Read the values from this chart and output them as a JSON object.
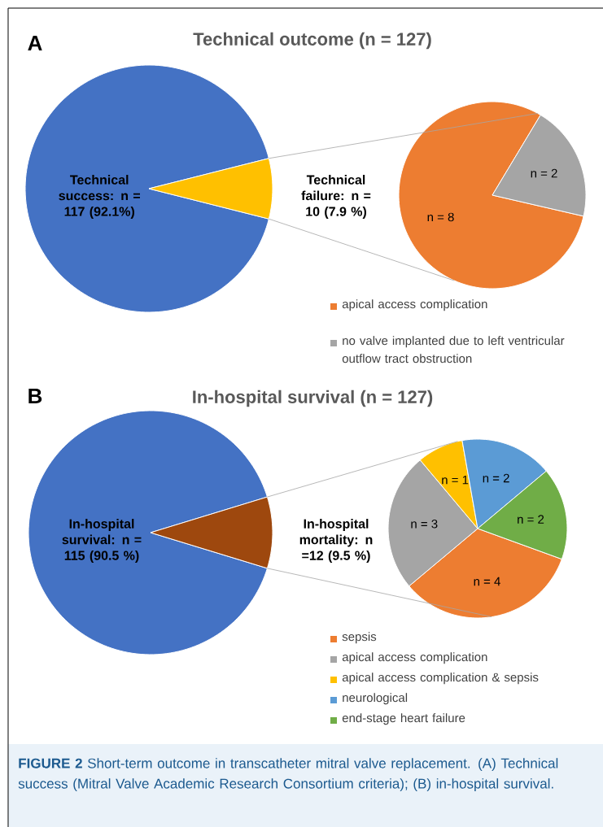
{
  "chart_data": [
    {
      "type": "pie",
      "title": "Technical outcome (n = 127)",
      "categories": [
        "Technical success: n = 117 (92.1%)",
        "Technical failure: n = 10 (7.9 %)"
      ],
      "values": [
        117,
        10
      ],
      "colors": [
        "#4472c4",
        "#ffc000"
      ],
      "annotations": [
        "A"
      ]
    },
    {
      "type": "pie",
      "categories": [
        "apical access complication",
        "no valve implanted due to left ventricular outflow tract obstruction"
      ],
      "values": [
        8,
        2
      ],
      "colors": [
        "#ed7d31",
        "#a5a5a5"
      ],
      "value_labels": [
        "n = 8",
        "n = 2"
      ],
      "legend": "bottom"
    },
    {
      "type": "pie",
      "title": "In-hospital survival (n = 127)",
      "categories": [
        "In-hospital survival: n = 115 (90.5 %)",
        "In-hospital mortality: n =12 (9.5 %)"
      ],
      "values": [
        115,
        12
      ],
      "colors": [
        "#4472c4",
        "#9e480e"
      ],
      "annotations": [
        "B"
      ]
    },
    {
      "type": "pie",
      "categories": [
        "sepsis",
        "apical access complication",
        "apical access complication & sepsis",
        "neurological",
        "end-stage heart failure"
      ],
      "values": [
        4,
        3,
        1,
        2,
        2
      ],
      "colors": [
        "#ed7d31",
        "#a5a5a5",
        "#ffc000",
        "#5b9bd5",
        "#70ad47"
      ],
      "value_labels": [
        "n = 4",
        "n = 3",
        "n = 1",
        "n = 2",
        "n = 2"
      ],
      "legend": "bottom",
      "annotations": [
        "**FIGURE 2** Short-term outcome in transcatheter mitral valve replacement. (A) Technical success (Mitral Valve Academic Research Consortium criteria); (B) in-hospital survival."
      ]
    }
  ]
}
